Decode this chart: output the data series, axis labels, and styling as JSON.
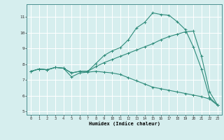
{
  "title": "",
  "xlabel": "Humidex (Indice chaleur)",
  "xlim": [
    -0.5,
    23.5
  ],
  "ylim": [
    4.8,
    11.8
  ],
  "xticks": [
    0,
    1,
    2,
    3,
    4,
    5,
    6,
    7,
    8,
    9,
    10,
    11,
    12,
    13,
    14,
    15,
    16,
    17,
    18,
    19,
    20,
    21,
    22,
    23
  ],
  "yticks": [
    5,
    6,
    7,
    8,
    9,
    10,
    11
  ],
  "bg_color": "#d6eeee",
  "line_color": "#2e8b7a",
  "grid_color": "#ffffff",
  "line1_x": [
    0,
    1,
    2,
    3,
    4,
    5,
    6,
    7,
    8,
    9,
    10,
    11,
    12,
    13,
    14,
    15,
    16,
    17,
    18,
    19,
    20,
    21,
    22,
    23
  ],
  "line1_y": [
    7.55,
    7.7,
    7.65,
    7.8,
    7.75,
    7.45,
    7.55,
    7.55,
    8.05,
    8.55,
    8.85,
    9.05,
    9.55,
    10.3,
    10.65,
    11.25,
    11.15,
    11.1,
    10.7,
    10.2,
    9.1,
    7.7,
    5.9,
    5.4
  ],
  "line2_x": [
    0,
    1,
    2,
    3,
    4,
    5,
    6,
    7,
    8,
    9,
    10,
    11,
    12,
    13,
    14,
    15,
    16,
    17,
    18,
    19,
    20,
    21,
    22,
    23
  ],
  "line2_y": [
    7.55,
    7.7,
    7.65,
    7.8,
    7.75,
    7.45,
    7.55,
    7.55,
    7.85,
    8.1,
    8.3,
    8.5,
    8.7,
    8.9,
    9.1,
    9.3,
    9.55,
    9.75,
    9.9,
    10.05,
    10.1,
    8.5,
    6.25,
    5.4
  ],
  "line3_x": [
    0,
    1,
    2,
    3,
    4,
    5,
    6,
    7,
    8,
    9,
    10,
    11,
    12,
    13,
    14,
    15,
    16,
    17,
    18,
    19,
    20,
    21,
    22,
    23
  ],
  "line3_y": [
    7.55,
    7.7,
    7.65,
    7.8,
    7.75,
    7.2,
    7.45,
    7.5,
    7.55,
    7.5,
    7.45,
    7.35,
    7.15,
    6.95,
    6.75,
    6.55,
    6.45,
    6.35,
    6.25,
    6.15,
    6.05,
    5.95,
    5.8,
    5.4
  ]
}
